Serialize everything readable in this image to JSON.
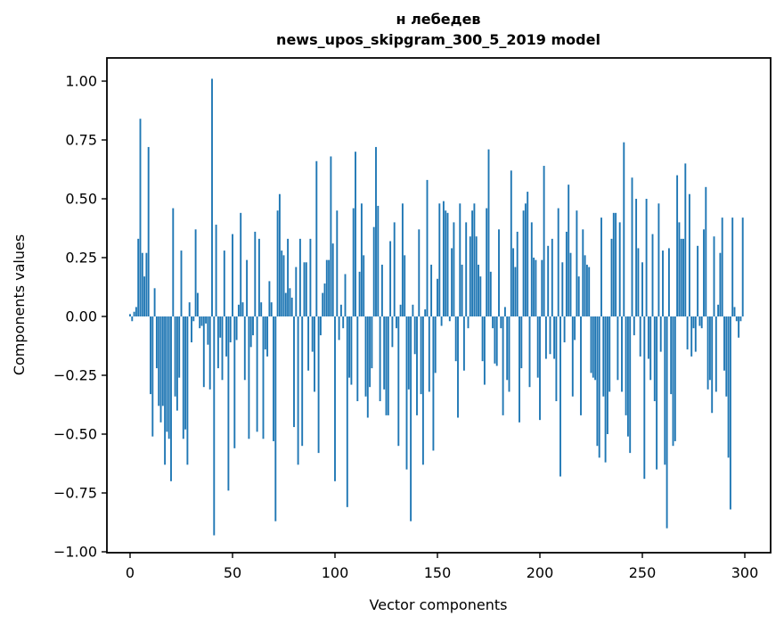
{
  "figure": {
    "title_line1": "н лебедев",
    "title_line2": "news_upos_skipgram_300_5_2019 model",
    "xlabel": "Vector components",
    "ylabel": "Components values",
    "bar_color": "#1f77b4",
    "axis_color": "#000000",
    "background_color": "#ffffff"
  },
  "chart_data": {
    "type": "bar",
    "title": "н лебедев\nnews_upos_skipgram_300_5_2019 model",
    "xlabel": "Vector components",
    "ylabel": "Components values",
    "x_start": 0,
    "n_bars": 300,
    "xlim": [
      -12,
      313
    ],
    "ylim": [
      -1.0,
      1.1
    ],
    "grid": false,
    "legend": "none",
    "x_ticks": [
      0,
      50,
      100,
      150,
      200,
      250,
      300
    ],
    "x_tick_labels": [
      "0",
      "50",
      "100",
      "150",
      "200",
      "250",
      "300"
    ],
    "y_ticks": [
      1.0,
      0.75,
      0.5,
      0.25,
      0.0,
      -0.25,
      -0.5,
      -0.75,
      -1.0
    ],
    "y_tick_labels": [
      "1.00",
      "0.75",
      "0.50",
      "0.25",
      "0.00",
      "−0.25",
      "−0.50",
      "−0.75",
      "−1.00"
    ],
    "values": [
      0.01,
      -0.02,
      0.02,
      0.04,
      0.33,
      0.84,
      0.27,
      0.17,
      0.27,
      0.72,
      -0.33,
      -0.51,
      0.12,
      -0.22,
      -0.38,
      -0.45,
      -0.38,
      -0.63,
      -0.49,
      -0.52,
      -0.7,
      0.46,
      -0.34,
      -0.4,
      -0.26,
      0.28,
      -0.52,
      -0.48,
      -0.63,
      0.06,
      -0.11,
      -0.02,
      0.37,
      0.1,
      -0.05,
      -0.04,
      -0.3,
      -0.03,
      -0.12,
      -0.31,
      1.01,
      -0.93,
      0.39,
      -0.22,
      -0.09,
      -0.27,
      0.28,
      -0.17,
      -0.74,
      -0.11,
      0.35,
      -0.56,
      -0.1,
      0.05,
      0.44,
      0.06,
      -0.27,
      0.24,
      -0.52,
      -0.13,
      -0.08,
      0.36,
      -0.49,
      0.33,
      0.06,
      -0.52,
      -0.14,
      -0.17,
      0.15,
      0.06,
      -0.53,
      -0.87,
      0.45,
      0.52,
      0.28,
      0.26,
      0.1,
      0.33,
      0.12,
      0.08,
      -0.47,
      0.21,
      -0.63,
      0.33,
      -0.55,
      0.23,
      0.23,
      -0.23,
      0.33,
      -0.15,
      -0.32,
      0.66,
      -0.58,
      -0.08,
      0.1,
      0.14,
      0.24,
      0.24,
      0.68,
      0.31,
      -0.7,
      0.45,
      -0.1,
      0.05,
      -0.05,
      0.18,
      -0.81,
      -0.26,
      -0.29,
      0.46,
      0.7,
      -0.36,
      0.19,
      0.48,
      0.26,
      -0.34,
      -0.43,
      -0.3,
      -0.22,
      0.38,
      0.72,
      0.47,
      -0.36,
      0.22,
      -0.31,
      -0.42,
      -0.42,
      0.32,
      -0.13,
      0.4,
      -0.05,
      -0.55,
      0.05,
      0.48,
      0.26,
      -0.65,
      -0.31,
      -0.87,
      0.05,
      -0.16,
      -0.42,
      0.37,
      -0.33,
      -0.63,
      0.03,
      0.58,
      -0.32,
      0.22,
      -0.57,
      -0.24,
      0.16,
      0.48,
      -0.04,
      0.49,
      0.45,
      0.44,
      -0.02,
      0.29,
      0.4,
      -0.19,
      -0.43,
      0.48,
      0.22,
      -0.23,
      0.4,
      -0.05,
      0.34,
      0.45,
      0.48,
      0.34,
      0.22,
      0.17,
      -0.19,
      -0.29,
      0.46,
      0.71,
      0.19,
      -0.05,
      -0.2,
      -0.21,
      0.37,
      -0.05,
      -0.42,
      0.04,
      -0.27,
      -0.32,
      0.62,
      0.29,
      0.21,
      0.36,
      -0.45,
      -0.22,
      0.45,
      0.48,
      0.53,
      -0.3,
      0.4,
      0.25,
      0.24,
      -0.26,
      -0.44,
      0.24,
      0.64,
      -0.18,
      0.3,
      -0.16,
      0.33,
      -0.18,
      -0.36,
      0.46,
      -0.68,
      0.23,
      -0.11,
      0.36,
      0.56,
      0.27,
      -0.34,
      -0.1,
      0.45,
      0.17,
      -0.42,
      0.37,
      0.26,
      0.22,
      0.21,
      -0.24,
      -0.26,
      -0.27,
      -0.55,
      -0.6,
      0.42,
      -0.34,
      -0.62,
      -0.5,
      -0.32,
      0.33,
      0.44,
      0.44,
      -0.27,
      0.4,
      -0.32,
      0.74,
      -0.42,
      -0.51,
      -0.58,
      0.59,
      -0.08,
      0.5,
      0.29,
      -0.17,
      0.23,
      -0.69,
      0.5,
      -0.18,
      -0.27,
      0.35,
      -0.36,
      -0.65,
      0.48,
      -0.15,
      0.28,
      -0.63,
      -0.9,
      0.29,
      -0.33,
      -0.55,
      -0.53,
      0.6,
      0.4,
      0.33,
      0.33,
      0.65,
      -0.14,
      0.52,
      -0.17,
      -0.05,
      -0.15,
      0.3,
      -0.04,
      -0.05,
      0.37,
      0.55,
      -0.31,
      -0.27,
      -0.41,
      0.34,
      -0.32,
      0.05,
      0.27,
      0.42,
      -0.23,
      -0.34,
      -0.6,
      -0.82,
      0.42,
      0.04,
      -0.02,
      -0.09,
      -0.02,
      0.42
    ]
  }
}
